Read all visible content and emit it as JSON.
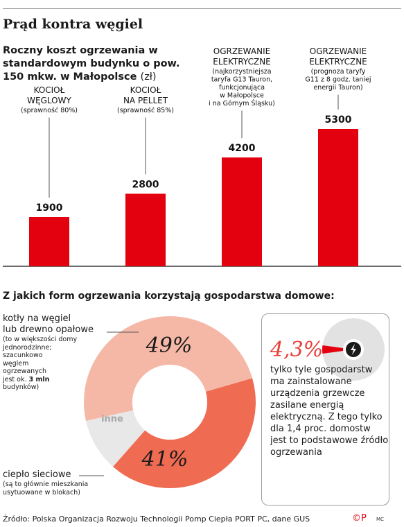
{
  "title": "Prąd kontra węgiel",
  "chart1": {
    "subtitle_bold": "Roczny koszt ogrzewania w standardowym budynku o pow. 150 mkw. w Małopolsce",
    "subtitle_unit": "(zł)"
  },
  "chart_data": [
    {
      "type": "bar",
      "title": "Roczny koszt ogrzewania w standardowym budynku o pow. 150 mkw. w Małopolsce (zł)",
      "categories": [
        {
          "name_lines": [
            "KOCIOŁ",
            "WĘGLOWY"
          ],
          "note_lines": [
            "(sprawność 80%)"
          ]
        },
        {
          "name_lines": [
            "KOCIOŁ",
            "NA PELLET"
          ],
          "note_lines": [
            "(sprawność 85%)"
          ]
        },
        {
          "name_lines": [
            "OGRZEWANIE",
            "ELEKTRYCZNE"
          ],
          "note_lines": [
            "(najkorzystniejsza",
            "taryfa G13 Tauron,",
            "funkcjonująca",
            "w Małopolsce",
            "i na Górnym Śląsku)"
          ]
        },
        {
          "name_lines": [
            "OGRZEWANIE",
            "ELEKTRYCZNE"
          ],
          "note_lines": [
            "(prognoza taryfy",
            "G11 z 8 godz. taniej",
            "energii Tauron)"
          ]
        }
      ],
      "values": [
        1900,
        2800,
        4200,
        5300
      ],
      "value_labels": [
        "1900",
        "2800",
        "4200",
        "5300"
      ],
      "bar_color": "#e3000f"
    },
    {
      "type": "pie",
      "title": "Z jakich form ogrzewania korzystają gospodarstwa domowe:",
      "slices": [
        {
          "name": "kotły na węgiel lub drewno opałowe",
          "value": 49,
          "label": "49%",
          "color": "#f6b8a6"
        },
        {
          "name": "ciepło sieciowe",
          "value": 41,
          "label": "41%",
          "color": "#ef6b52"
        },
        {
          "name": "inne",
          "value": 10,
          "label": "inne",
          "color": "#e8e8e8"
        }
      ]
    }
  ],
  "pie_labels": {
    "coal_title_lines": [
      "kotły na węgiel",
      "lubdrewno opałowe"
    ],
    "coal_note_lines": [
      "(to w większości domy",
      "jednorodzinne;",
      "szacunkowo",
      "węglem",
      "ogrzewanych",
      "jest ok."
    ],
    "coal_note_bold": "3 mln",
    "coal_note_end": "budynków)",
    "heat_title": "ciepło sieciowe",
    "heat_note_lines": [
      "(są to głównie mieszkania",
      "usytuowane w blokach)"
    ]
  },
  "inset": {
    "big": "4,3%",
    "text": "tylko tyle gospodarstw ma zainstalowane urządzenia grzewcze zasilane energią elektryczną. Z tego tylko dla 1,4 proc. domostw jest to podstawowe źródło ogrzewania",
    "icon": "lightning-icon",
    "share": 4.3
  },
  "footer": {
    "source": "Źródło: Polska Organizacja Rozwoju Technologii Pomp Ciepła PORT PC, dane GUS",
    "copyright": "©P",
    "author": "MC"
  },
  "colors": {
    "accent_red": "#e3000f",
    "coal": "#f6b8a6",
    "district": "#ef6b52",
    "other": "#e8e8e8",
    "inset_pct": "#e8403a"
  }
}
